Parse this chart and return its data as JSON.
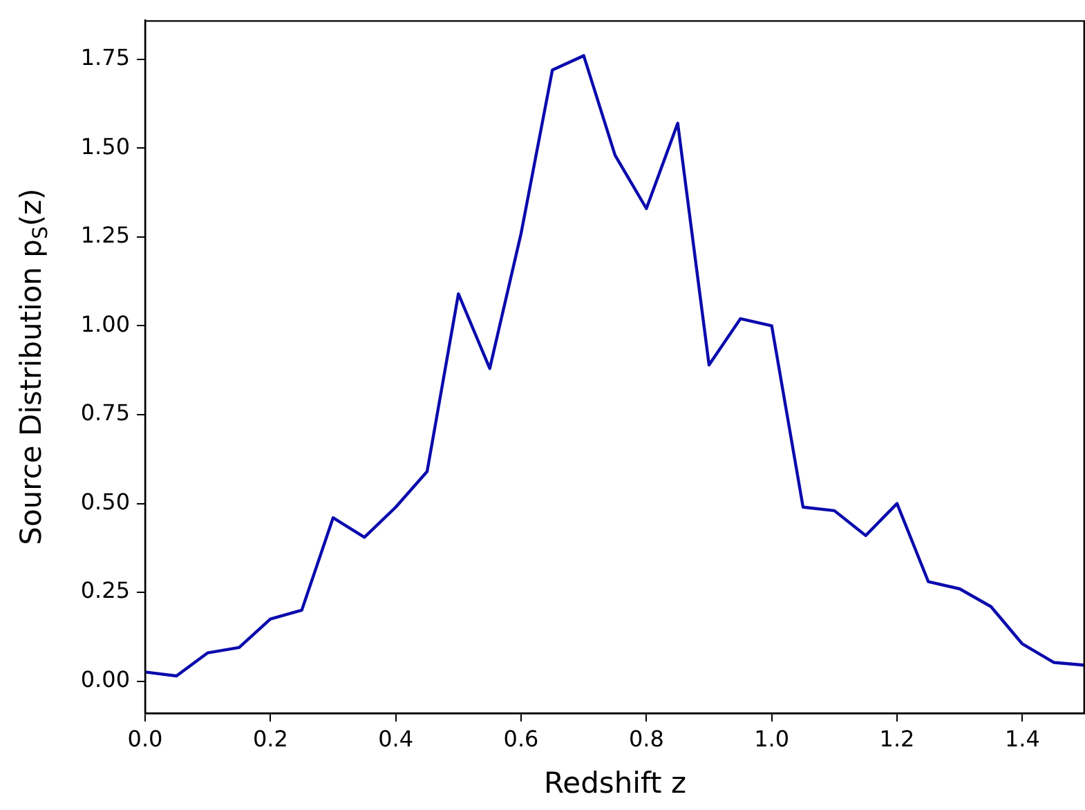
{
  "chart_data": {
    "type": "line",
    "xlabel": "Redshift z",
    "ylabel": "Source Distribution p$_{S}$(z)",
    "x": [
      0,
      0.05,
      0.1,
      0.15,
      0.2,
      0.25,
      0.3,
      0.35,
      0.4,
      0.45,
      0.5,
      0.55,
      0.6,
      0.65,
      0.7,
      0.75,
      0.8,
      0.85,
      0.9,
      0.95,
      1.0,
      1.05,
      1.1,
      1.15,
      1.2,
      1.25,
      1.3,
      1.35,
      1.4,
      1.45,
      1.5
    ],
    "series": [
      {
        "color": "#0a0aad",
        "values": [
          0.026,
          0.015,
          0.08,
          0.095,
          0.175,
          0.2,
          0.46,
          0.405,
          0.49,
          0.59,
          1.09,
          0.88,
          1.26,
          1.72,
          1.76,
          1.48,
          1.33,
          1.57,
          0.89,
          1.02,
          1.0,
          0.49,
          0.48,
          0.41,
          0.5,
          0.28,
          0.26,
          0.21,
          0.105,
          0.053,
          0.045
        ]
      }
    ],
    "xlim": [
      0,
      1.5
    ],
    "ylim": [
      -0.09,
      1.86
    ],
    "xticks": [
      {
        "value": 0,
        "label": "0.0"
      },
      {
        "value": 0.2,
        "label": "0.2"
      },
      {
        "value": 0.4,
        "label": "0.4"
      },
      {
        "value": 0.6,
        "label": "0.6"
      },
      {
        "value": 0.8,
        "label": "0.8"
      },
      {
        "value": 1,
        "label": "1.0"
      },
      {
        "value": 1.2,
        "label": "1.2"
      },
      {
        "value": 1.4,
        "label": "1.4"
      }
    ],
    "yticks": [
      {
        "value": 0,
        "label": "0.00"
      },
      {
        "value": 0.25,
        "label": "0.25"
      },
      {
        "value": 0.5,
        "label": "0.50"
      },
      {
        "value": 0.75,
        "label": "0.75"
      },
      {
        "value": 1,
        "label": "1.00"
      },
      {
        "value": 1.25,
        "label": "1.25"
      },
      {
        "value": 1.5,
        "label": "1.50"
      },
      {
        "value": 1.75,
        "label": "1.75"
      }
    ],
    "grid": false,
    "legend": false,
    "marker": "none",
    "line_style": "solid"
  }
}
